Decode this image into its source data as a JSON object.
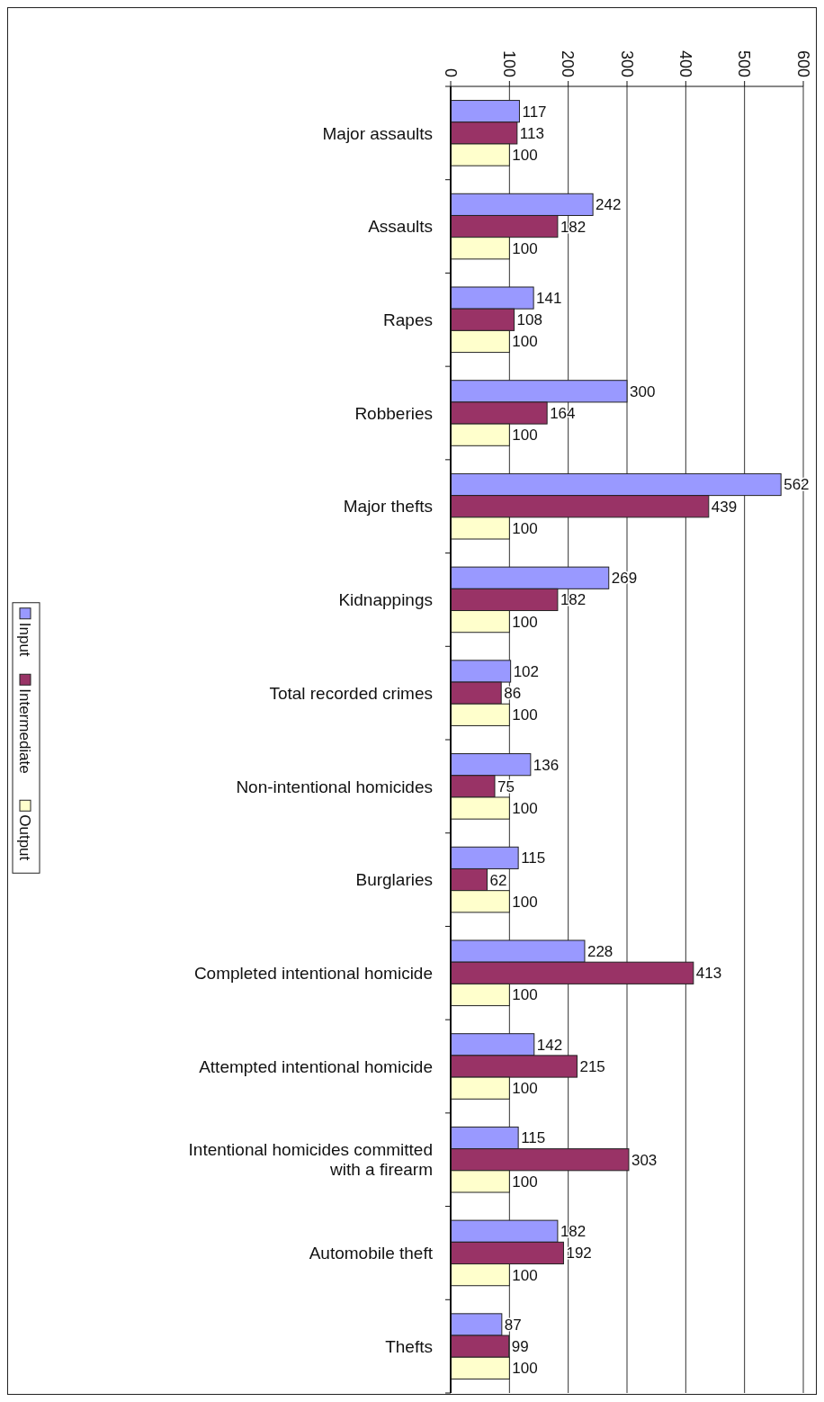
{
  "chart_data": {
    "type": "bar",
    "orientation": "horizontal",
    "categories": [
      "Major assaults",
      "Assaults",
      "Rapes",
      "Robberies",
      "Major thefts",
      "Kidnappings",
      "Total recorded crimes",
      "Non-intentional homicides",
      "Burglaries",
      "Completed intentional homicide",
      "Attempted intentional homicide",
      "Intentional homicides committed with a firearm",
      "Automobile theft",
      "Thefts"
    ],
    "series": [
      {
        "name": "Input",
        "color": "#9999ff",
        "values": [
          117,
          242,
          141,
          300,
          562,
          269,
          102,
          136,
          115,
          228,
          142,
          115,
          182,
          87
        ]
      },
      {
        "name": "Intermediate",
        "color": "#993366",
        "values": [
          113,
          182,
          108,
          164,
          439,
          182,
          86,
          75,
          62,
          413,
          215,
          303,
          192,
          99
        ]
      },
      {
        "name": "Output",
        "color": "#ffffcc",
        "values": [
          100,
          100,
          100,
          100,
          100,
          100,
          100,
          100,
          100,
          100,
          100,
          100,
          100,
          100
        ]
      }
    ],
    "xlim": [
      0,
      600
    ],
    "xticks": [
      0,
      100,
      200,
      300,
      400,
      500,
      600
    ],
    "grid": "x",
    "legend": "left",
    "data_labels": true
  }
}
